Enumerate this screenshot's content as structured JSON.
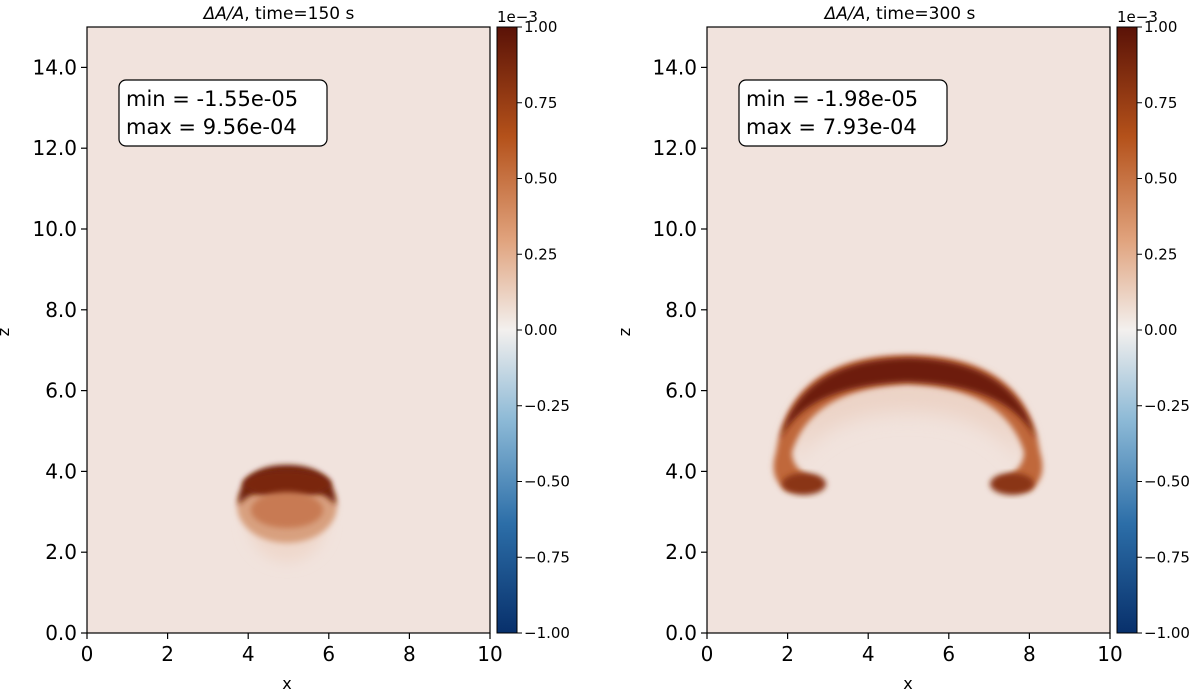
{
  "chart_data": [
    {
      "type": "heatmap",
      "title_prefix": "ΔA/A",
      "title_suffix": ", time=150 s",
      "xlabel": "x",
      "ylabel": "z",
      "xlim": [
        0,
        10
      ],
      "ylim": [
        0,
        15
      ],
      "xticks": [
        0,
        2,
        4,
        6,
        8,
        10
      ],
      "yticks": [
        0.0,
        2.0,
        4.0,
        6.0,
        8.0,
        10.0,
        12.0,
        14.0
      ],
      "xtick_labels": [
        "0",
        "2",
        "4",
        "6",
        "8",
        "10"
      ],
      "ytick_labels": [
        "0.0",
        "2.0",
        "4.0",
        "6.0",
        "8.0",
        "10.0",
        "12.0",
        "14.0"
      ],
      "stats": [
        "min = -1.55e-05",
        "max = 9.56e-04"
      ],
      "colorbar": {
        "range": [
          -1.0,
          1.0
        ],
        "scale_label": "1e−3",
        "ticks": [
          1.0,
          0.75,
          0.5,
          0.25,
          0.0,
          -0.25,
          -0.5,
          -0.75,
          -1.0
        ],
        "tick_labels": [
          "1.00",
          "0.75",
          "0.50",
          "0.25",
          "0.00",
          "−0.25",
          "−0.50",
          "−0.75",
          "−1.00"
        ],
        "colormap": "diverging blue-white-orange",
        "colors": [
          "#08306b",
          "#2c6ea8",
          "#8cb9d6",
          "#f3f0ee",
          "#e0a27c",
          "#b4511a",
          "#5a1207"
        ]
      },
      "background_value": 0.06,
      "feature": "compact dark ring cap near x=5, z=3.5, fading toward z=2"
    },
    {
      "type": "heatmap",
      "title_prefix": "ΔA/A",
      "title_suffix": ", time=300 s",
      "xlabel": "x",
      "ylabel": "z",
      "xlim": [
        0,
        10
      ],
      "ylim": [
        0,
        15
      ],
      "xticks": [
        0,
        2,
        4,
        6,
        8,
        10
      ],
      "yticks": [
        0.0,
        2.0,
        4.0,
        6.0,
        8.0,
        10.0,
        12.0,
        14.0
      ],
      "xtick_labels": [
        "0",
        "2",
        "4",
        "6",
        "8",
        "10"
      ],
      "ytick_labels": [
        "0.0",
        "2.0",
        "4.0",
        "6.0",
        "8.0",
        "10.0",
        "12.0",
        "14.0"
      ],
      "stats": [
        "min = -1.98e-05",
        "max = 7.93e-04"
      ],
      "colorbar": {
        "range": [
          -1.0,
          1.0
        ],
        "scale_label": "1e−3",
        "ticks": [
          1.0,
          0.75,
          0.5,
          0.25,
          0.0,
          -0.25,
          -0.5,
          -0.75,
          -1.0
        ],
        "tick_labels": [
          "1.00",
          "0.75",
          "0.50",
          "0.25",
          "0.00",
          "−0.25",
          "−0.50",
          "−0.75",
          "−1.00"
        ],
        "colormap": "diverging blue-white-orange",
        "colors": [
          "#08306b",
          "#2c6ea8",
          "#8cb9d6",
          "#f3f0ee",
          "#e0a27c",
          "#b4511a",
          "#5a1207"
        ]
      },
      "background_value": 0.06,
      "feature": "mushroom-shaped arch centered x=5 spanning x=1.8–8.2, top near z=6.5, curled ends near z=3.6"
    }
  ]
}
